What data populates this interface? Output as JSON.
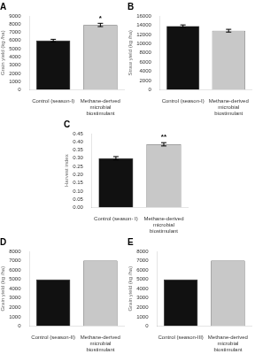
{
  "chart_data": [
    {
      "type": "bar",
      "title": "A",
      "categories": [
        "Control (season-I)",
        "Methane-derived\nmicrobial\nbiostimulant"
      ],
      "values": [
        6000,
        7900
      ],
      "errors": [
        150,
        200
      ],
      "colors": [
        "#111111",
        "#c8c8c8"
      ],
      "ylabel": "Grain yield (kg /ha)",
      "ylim": [
        0,
        9000
      ],
      "yticks": [
        0,
        1000,
        2000,
        3000,
        4000,
        5000,
        6000,
        7000,
        8000,
        9000
      ],
      "significance": [
        null,
        "*"
      ],
      "grid": false
    },
    {
      "type": "bar",
      "title": "B",
      "categories": [
        "Control (season-I)",
        "Methane-derived\nmicrobial\nbiostimulant"
      ],
      "values": [
        13800,
        12800
      ],
      "errors": [
        250,
        300
      ],
      "colors": [
        "#111111",
        "#c8c8c8"
      ],
      "ylabel": "Straw yield (kg /ha)",
      "ylim": [
        0,
        16000
      ],
      "yticks": [
        0,
        2000,
        4000,
        6000,
        8000,
        10000,
        12000,
        14000,
        16000
      ],
      "grid": false
    },
    {
      "type": "bar",
      "title": "C",
      "categories": [
        "Control (season- I)",
        "Methane-derived\nmicrobial\nbiostimulant"
      ],
      "values": [
        0.3,
        0.385
      ],
      "errors": [
        0.01,
        0.01
      ],
      "colors": [
        "#111111",
        "#c8c8c8"
      ],
      "ylabel": "Harvest index",
      "ylim": [
        0,
        0.45
      ],
      "yticks": [
        {
          "value": 0,
          "label": "0.00"
        },
        0.05,
        {
          "value": 0.1,
          "label": "0.10"
        },
        0.15,
        {
          "value": 0.2,
          "label": "0.20"
        },
        0.25,
        {
          "value": 0.3,
          "label": "0.30"
        },
        0.35,
        {
          "value": 0.4,
          "label": "0.40"
        },
        0.45
      ],
      "significance": [
        null,
        "**"
      ],
      "grid": false
    },
    {
      "type": "bar",
      "title": "D",
      "categories": [
        "Control (season-II)",
        "Methane-derived\nmicrobial\nbiostimulant"
      ],
      "values": [
        5000,
        7000
      ],
      "colors": [
        "#111111",
        "#c8c8c8"
      ],
      "ylabel": "Grain yield (kg /ha)",
      "ylim": [
        0,
        8000
      ],
      "yticks": [
        0,
        1000,
        2000,
        3000,
        4000,
        5000,
        6000,
        7000,
        8000
      ],
      "grid": false
    },
    {
      "type": "bar",
      "title": "E",
      "categories": [
        "Control (season-III)",
        "Methane-derived\nmicrobial\nbiostimulant"
      ],
      "values": [
        5000,
        7000
      ],
      "colors": [
        "#111111",
        "#c8c8c8"
      ],
      "ylabel": "Grain yield (kg /ha)",
      "ylim": [
        0,
        8000
      ],
      "yticks": [
        0,
        1000,
        2000,
        3000,
        4000,
        5000,
        6000,
        7000,
        8000
      ],
      "grid": false
    }
  ]
}
